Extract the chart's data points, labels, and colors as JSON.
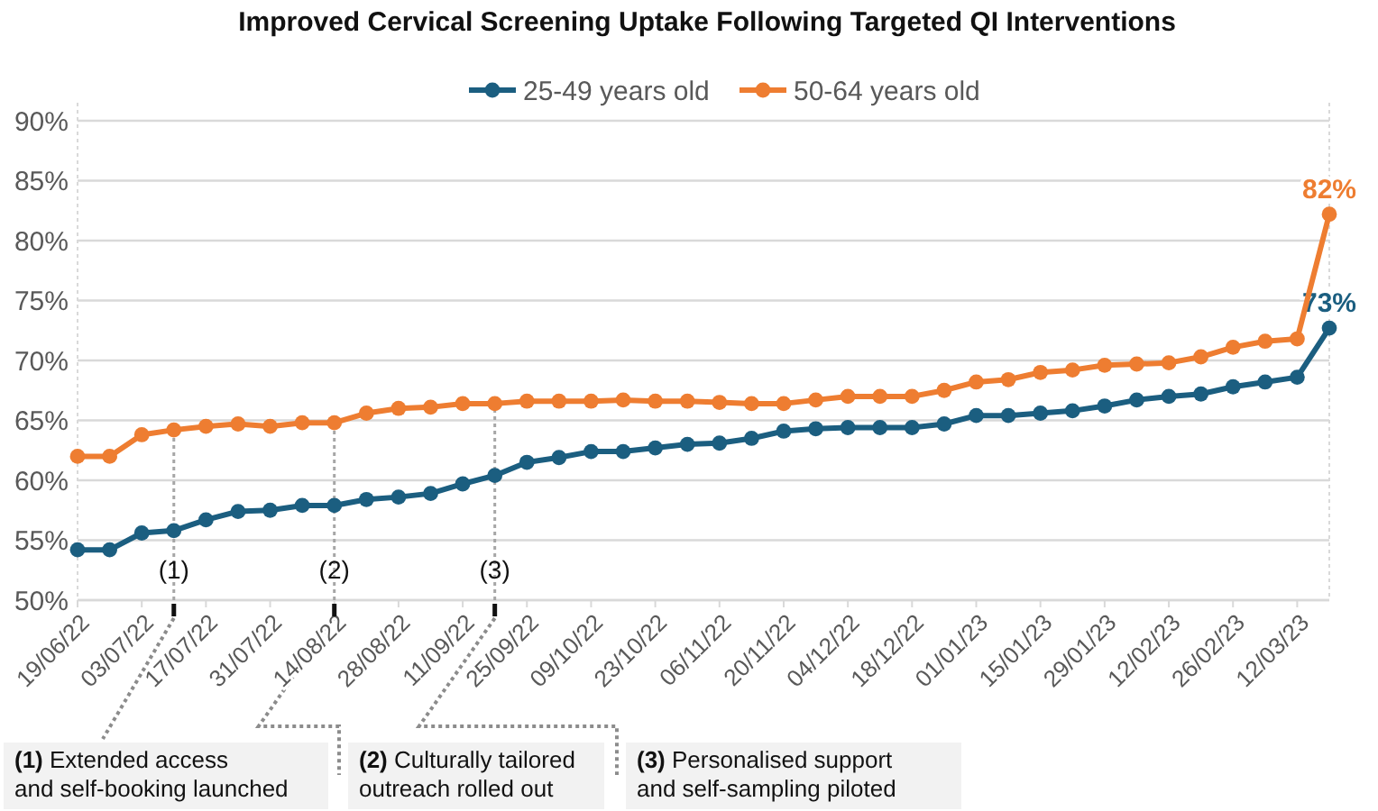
{
  "chart_data": {
    "type": "line",
    "title": "Improved Cervical Screening Uptake Following Targeted QI Interventions",
    "categories": [
      "19/06/22",
      null,
      "03/07/22",
      null,
      "17/07/22",
      null,
      "31/07/22",
      null,
      "14/08/22",
      null,
      "28/08/22",
      null,
      "11/09/22",
      null,
      "25/09/22",
      null,
      "09/10/22",
      null,
      "23/10/22",
      null,
      "06/11/22",
      null,
      "20/11/22",
      null,
      "04/12/22",
      null,
      "18/12/22",
      null,
      "01/01/23",
      null,
      "15/01/23",
      null,
      "29/01/23",
      null,
      "12/02/23",
      null,
      "26/02/23",
      null,
      "12/03/23",
      null
    ],
    "series": [
      {
        "name": "25-49 years old",
        "color": "#1b5e80",
        "values": [
          54.2,
          54.2,
          55.6,
          55.8,
          56.7,
          57.4,
          57.5,
          57.9,
          57.9,
          58.4,
          58.6,
          58.9,
          59.7,
          60.4,
          61.5,
          61.9,
          62.4,
          62.4,
          62.7,
          63.0,
          63.1,
          63.5,
          64.1,
          64.3,
          64.4,
          64.4,
          64.4,
          64.7,
          65.4,
          65.4,
          65.6,
          65.8,
          66.2,
          66.7,
          67.0,
          67.2,
          67.8,
          68.2,
          68.6,
          72.7
        ],
        "value_labels": [
          null,
          null,
          null,
          null,
          null,
          null,
          null,
          null,
          null,
          null,
          null,
          null,
          null,
          null,
          null,
          null,
          null,
          null,
          null,
          null,
          null,
          null,
          null,
          null,
          null,
          null,
          null,
          null,
          null,
          null,
          null,
          null,
          null,
          null,
          null,
          null,
          null,
          null,
          null,
          "73%"
        ]
      },
      {
        "name": "50-64 years old",
        "color": "#ee7d31",
        "values": [
          62.0,
          62.0,
          63.8,
          64.2,
          64.5,
          64.7,
          64.5,
          64.8,
          64.8,
          65.6,
          66.0,
          66.1,
          66.4,
          66.4,
          66.6,
          66.6,
          66.6,
          66.7,
          66.6,
          66.6,
          66.5,
          66.4,
          66.4,
          66.7,
          67.0,
          67.0,
          67.0,
          67.5,
          68.2,
          68.4,
          69.0,
          69.2,
          69.6,
          69.7,
          69.8,
          70.3,
          71.1,
          71.6,
          71.8,
          82.2
        ],
        "value_labels": [
          null,
          null,
          null,
          null,
          null,
          null,
          null,
          null,
          null,
          null,
          null,
          null,
          null,
          null,
          null,
          null,
          null,
          null,
          null,
          null,
          null,
          null,
          null,
          null,
          null,
          null,
          null,
          null,
          null,
          null,
          null,
          null,
          null,
          null,
          null,
          null,
          null,
          null,
          null,
          "82%"
        ]
      }
    ],
    "ylim": [
      50,
      90
    ],
    "yticks": [
      {
        "value": 50,
        "label": "50%"
      },
      {
        "value": 55,
        "label": "55%"
      },
      {
        "value": 60,
        "label": "60%"
      },
      {
        "value": 65,
        "label": "65%"
      },
      {
        "value": 70,
        "label": "70%"
      },
      {
        "value": 75,
        "label": "75%"
      },
      {
        "value": 80,
        "label": "80%"
      },
      {
        "value": 85,
        "label": "85%"
      },
      {
        "value": 90,
        "label": "90%"
      }
    ],
    "grid": "y",
    "legend": "top",
    "marker": "circle",
    "line_style": "solid",
    "annotations": [
      {
        "text": "(1)",
        "y": 64.2
      },
      {
        "text": "(2)",
        "x": "14/08/22",
        "y": 64.8
      },
      {
        "text": "(3)",
        "y": 66.4
      },
      "(1) Extended access and self-booking launched",
      "(2) Culturally tailored outreach rolled out",
      "(3) Personalised support and self-sampling piloted"
    ]
  }
}
